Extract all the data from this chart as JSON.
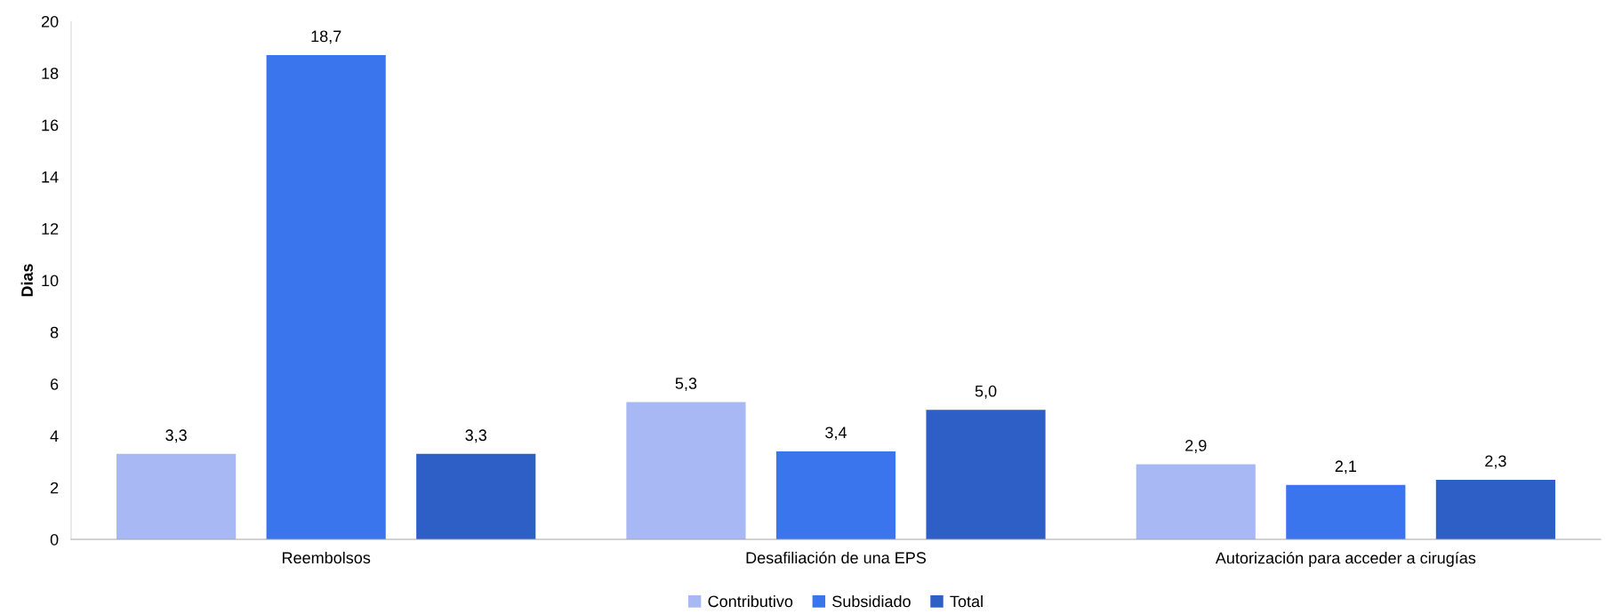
{
  "chart_data": {
    "type": "bar",
    "ylabel": "Dias",
    "categories": [
      "Reembolsos",
      "Desafiliación de una EPS",
      "Autorización para acceder a cirugías"
    ],
    "series": [
      {
        "name": "Contributivo",
        "color": "#a8b8f4",
        "values": [
          3.3,
          5.3,
          2.9
        ],
        "value_labels": [
          "3,3",
          "5,3",
          "2,9"
        ]
      },
      {
        "name": "Subsidiado",
        "color": "#3a75ee",
        "values": [
          18.7,
          3.4,
          2.1
        ],
        "value_labels": [
          "18,7",
          "3,4",
          "2,1"
        ]
      },
      {
        "name": "Total",
        "color": "#2d5fc6",
        "values": [
          3.3,
          5.0,
          2.3
        ],
        "value_labels": [
          "3,3",
          "5,0",
          "2,3"
        ]
      }
    ],
    "ylim": [
      0,
      20
    ],
    "yticks": [
      0,
      2,
      4,
      6,
      8,
      10,
      12,
      14,
      16,
      18,
      20
    ],
    "grid": false,
    "legend": "bottom"
  }
}
